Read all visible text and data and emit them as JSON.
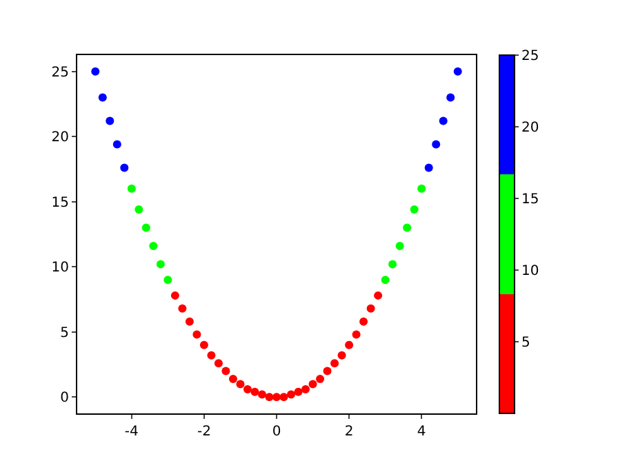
{
  "chart_data": {
    "type": "scatter",
    "x": [
      -5,
      -4.8,
      -4.6,
      -4.4,
      -4.2,
      -4,
      -3.8,
      -3.6,
      -3.4,
      -3.2,
      -3,
      -2.8,
      -2.6,
      -2.4,
      -2.2,
      -2,
      -1.8,
      -1.6,
      -1.4,
      -1.2,
      -1,
      -0.8,
      -0.6,
      -0.4,
      -0.2,
      0,
      0.2,
      0.4,
      0.6,
      0.8,
      1,
      1.2,
      1.4,
      1.6,
      1.8,
      2,
      2.2,
      2.4,
      2.6,
      2.8,
      3,
      3.2,
      3.4,
      3.6,
      3.8,
      4,
      4.2,
      4.4,
      4.6,
      4.8,
      5
    ],
    "values": [
      25,
      23,
      21.2,
      19.4,
      17.6,
      16,
      14.4,
      13,
      11.6,
      10.2,
      9,
      7.8,
      6.8,
      5.8,
      4.8,
      4,
      3.2,
      2.6,
      2,
      1.4,
      1,
      0.6,
      0.4,
      0.2,
      0,
      0,
      0,
      0.2,
      0.4,
      0.6,
      1,
      1.4,
      2,
      2.6,
      3.2,
      4,
      4.8,
      5.8,
      6.8,
      7.8,
      9,
      10.2,
      11.6,
      13,
      14.4,
      16,
      17.6,
      19.4,
      21.2,
      23,
      25
    ],
    "colors": [
      "#0000ff",
      "#0000ff",
      "#0000ff",
      "#0000ff",
      "#0000ff",
      "#00ff00",
      "#00ff00",
      "#00ff00",
      "#00ff00",
      "#00ff00",
      "#00ff00",
      "#ff0000",
      "#ff0000",
      "#ff0000",
      "#ff0000",
      "#ff0000",
      "#ff0000",
      "#ff0000",
      "#ff0000",
      "#ff0000",
      "#ff0000",
      "#ff0000",
      "#ff0000",
      "#ff0000",
      "#ff0000",
      "#ff0000",
      "#ff0000",
      "#ff0000",
      "#ff0000",
      "#ff0000",
      "#ff0000",
      "#ff0000",
      "#ff0000",
      "#ff0000",
      "#ff0000",
      "#ff0000",
      "#ff0000",
      "#ff0000",
      "#ff0000",
      "#ff0000",
      "#00ff00",
      "#00ff00",
      "#00ff00",
      "#00ff00",
      "#00ff00",
      "#00ff00",
      "#0000ff",
      "#0000ff",
      "#0000ff",
      "#0000ff",
      "#0000ff"
    ],
    "clim": [
      0,
      25
    ],
    "cticks": [
      5,
      10,
      15,
      20,
      25
    ],
    "xlim": [
      -5.5,
      5.5
    ],
    "xticks": [
      -4,
      -2,
      0,
      2,
      4
    ],
    "ylim": [
      -1.25,
      26.25
    ],
    "yticks": [
      0,
      5,
      10,
      15,
      20,
      25
    ],
    "marker": "circle",
    "legend": false
  }
}
